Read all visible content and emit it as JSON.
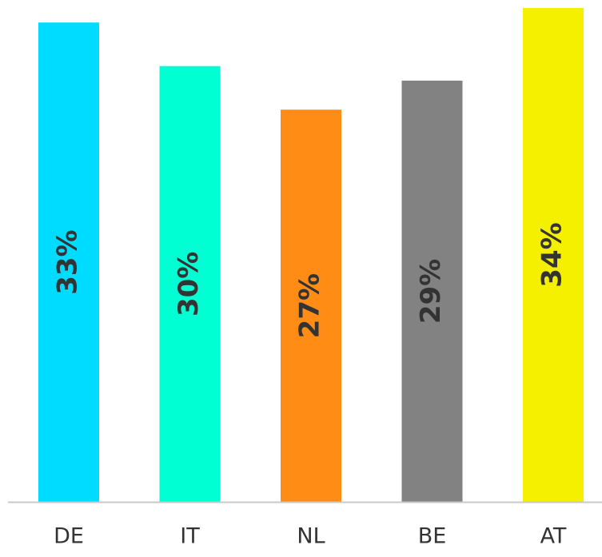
{
  "chart_data": {
    "type": "bar",
    "categories": [
      "DE",
      "IT",
      "NL",
      "BE",
      "AT"
    ],
    "values": [
      33,
      30,
      27,
      29,
      34
    ],
    "value_labels": [
      "33%",
      "30%",
      "27%",
      "29%",
      "34%"
    ],
    "colors": [
      "#00dcff",
      "#00ffd2",
      "#ff8c14",
      "#828282",
      "#f5f000"
    ]
  }
}
